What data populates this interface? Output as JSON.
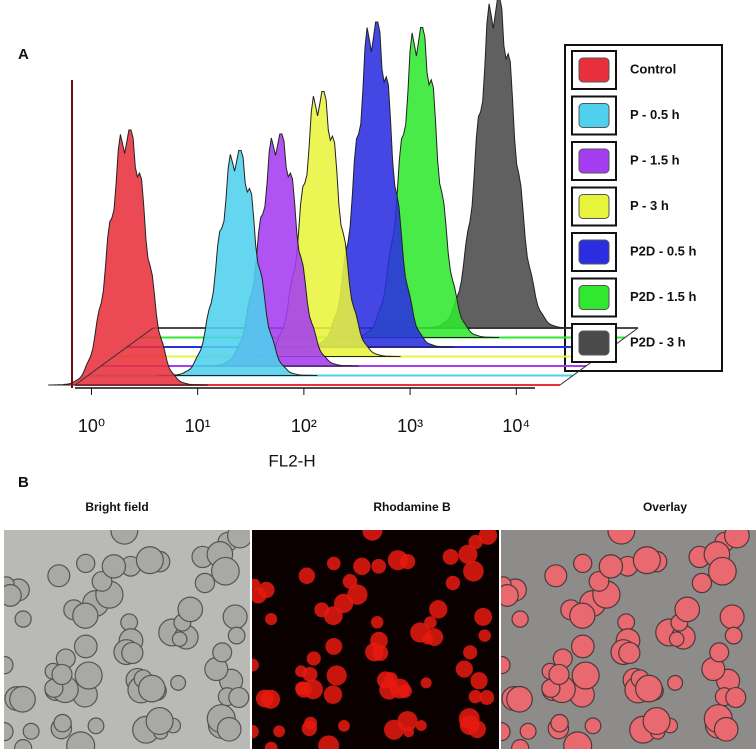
{
  "chart_data": {
    "type": "histogram3d",
    "panel": "A",
    "xlabel": "FL2-H",
    "xscale": "log",
    "xlim": [
      0.7,
      15000
    ],
    "xticks": [
      {
        "value": 1,
        "label": "10⁰"
      },
      {
        "value": 10,
        "label": "10¹"
      },
      {
        "value": 100,
        "label": "10²"
      },
      {
        "value": 1000,
        "label": "10³"
      },
      {
        "value": 10000,
        "label": "10⁴"
      }
    ],
    "series": [
      {
        "name": "Control",
        "color": "#e8303c",
        "peak": 2.2,
        "max_count": 255
      },
      {
        "name": "P - 0.5 h",
        "color": "#4fd0ee",
        "peak": 18,
        "max_count": 225
      },
      {
        "name": "P - 1.5 h",
        "color": "#a43cf0",
        "peak": 33,
        "max_count": 232
      },
      {
        "name": "P - 3 h",
        "color": "#e8f43c",
        "peak": 62,
        "max_count": 265
      },
      {
        "name": "P2D - 0.5 h",
        "color": "#2a2ee0",
        "peak": 150,
        "max_count": 325
      },
      {
        "name": "P2D - 1.5 h",
        "color": "#30e830",
        "peak": 300,
        "max_count": 310
      },
      {
        "name": "P2D - 3 h",
        "color": "#4a4a4a",
        "peak": 1200,
        "max_count": 330
      }
    ]
  },
  "panel_b": {
    "label": "B",
    "images": [
      "Bright field",
      "Rhodamine B",
      "Overlay"
    ]
  }
}
